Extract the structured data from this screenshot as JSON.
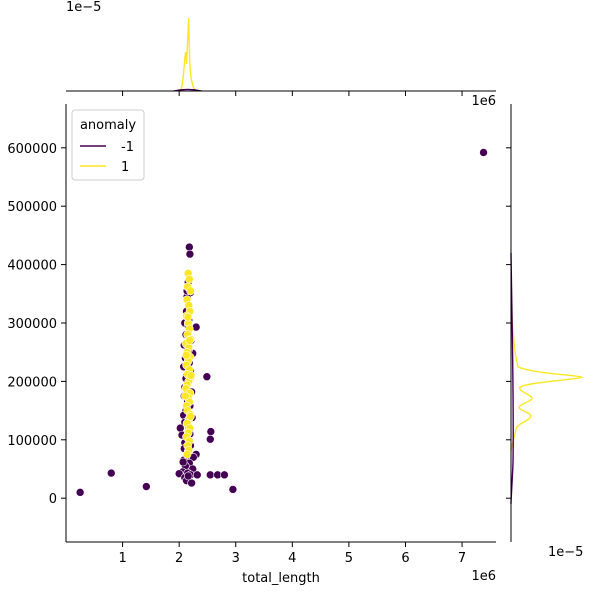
{
  "chart_data": {
    "type": "scatter",
    "xlabel": "total_length",
    "ylabel": "",
    "x_offset_label": "1e6",
    "y_offset_label": "",
    "xlim": [
      0,
      7600000
    ],
    "ylim": [
      -75000,
      675000
    ],
    "x_ticks": [
      {
        "value": 1000000,
        "label": "1"
      },
      {
        "value": 2000000,
        "label": "2"
      },
      {
        "value": 3000000,
        "label": "3"
      },
      {
        "value": 4000000,
        "label": "4"
      },
      {
        "value": 5000000,
        "label": "5"
      },
      {
        "value": 6000000,
        "label": "6"
      },
      {
        "value": 7000000,
        "label": "7"
      }
    ],
    "y_ticks": [
      {
        "value": 0,
        "label": "0"
      },
      {
        "value": 100000,
        "label": "100000"
      },
      {
        "value": 200000,
        "label": "200000"
      },
      {
        "value": 300000,
        "label": "300000"
      },
      {
        "value": 400000,
        "label": "400000"
      },
      {
        "value": 500000,
        "label": "500000"
      },
      {
        "value": 600000,
        "label": "600000"
      }
    ],
    "legend": {
      "title": "anomaly",
      "placement": "top-left",
      "entries": [
        {
          "label": "-1",
          "color": "#440154"
        },
        {
          "label": "1",
          "color": "#fde725"
        }
      ]
    },
    "series": [
      {
        "name": "-1",
        "color": "#440154",
        "points": [
          [
            250000,
            10000
          ],
          [
            800000,
            43000
          ],
          [
            1420000,
            20000
          ],
          [
            2950000,
            15000
          ],
          [
            7380000,
            592000
          ],
          [
            2180000,
            430000
          ],
          [
            2190000,
            418000
          ],
          [
            2160000,
            370000
          ],
          [
            2200000,
            352000
          ],
          [
            2140000,
            345000
          ],
          [
            2130000,
            320000
          ],
          [
            2170000,
            305000
          ],
          [
            2100000,
            300000
          ],
          [
            2300000,
            293000
          ],
          [
            2160000,
            295000
          ],
          [
            2120000,
            280000
          ],
          [
            2210000,
            270000
          ],
          [
            2090000,
            262000
          ],
          [
            2150000,
            255000
          ],
          [
            2240000,
            248000
          ],
          [
            2110000,
            240000
          ],
          [
            2180000,
            232000
          ],
          [
            2080000,
            225000
          ],
          [
            2200000,
            218000
          ],
          [
            2490000,
            208000
          ],
          [
            2130000,
            210000
          ],
          [
            2160000,
            198000
          ],
          [
            2100000,
            190000
          ],
          [
            2220000,
            182000
          ],
          [
            2090000,
            175000
          ],
          [
            2150000,
            165000
          ],
          [
            2190000,
            158000
          ],
          [
            2120000,
            150000
          ],
          [
            2080000,
            142000
          ],
          [
            2230000,
            138000
          ],
          [
            2100000,
            130000
          ],
          [
            2170000,
            122000
          ],
          [
            2020000,
            120000
          ],
          [
            2560000,
            114000
          ],
          [
            2550000,
            101000
          ],
          [
            2050000,
            108000
          ],
          [
            2140000,
            100000
          ],
          [
            2100000,
            95000
          ],
          [
            2200000,
            90000
          ],
          [
            2090000,
            85000
          ],
          [
            2160000,
            80000
          ],
          [
            2300000,
            75000
          ],
          [
            2130000,
            72000
          ],
          [
            2250000,
            70000
          ],
          [
            2080000,
            65000
          ],
          [
            2180000,
            60000
          ],
          [
            2110000,
            55000
          ],
          [
            2240000,
            50000
          ],
          [
            2060000,
            45000
          ],
          [
            2150000,
            43000
          ],
          [
            2000000,
            42000
          ],
          [
            2200000,
            40000
          ],
          [
            2320000,
            40000
          ],
          [
            2550000,
            40000
          ],
          [
            2680000,
            40000
          ],
          [
            2800000,
            40000
          ],
          [
            2100000,
            35000
          ],
          [
            2130000,
            30000
          ],
          [
            2220000,
            26000
          ],
          [
            2160000,
            38000
          ],
          [
            2070000,
            62000
          ],
          [
            2190000,
            110000
          ],
          [
            2120000,
            205000
          ],
          [
            2170000,
            255000
          ],
          [
            2140000,
            355000
          ]
        ]
      },
      {
        "name": "1",
        "color": "#fde725",
        "points": [
          [
            2160000,
            385000
          ],
          [
            2180000,
            375000
          ],
          [
            2150000,
            362000
          ],
          [
            2200000,
            355000
          ],
          [
            2140000,
            340000
          ],
          [
            2170000,
            330000
          ],
          [
            2190000,
            320000
          ],
          [
            2130000,
            312000
          ],
          [
            2160000,
            300000
          ],
          [
            2180000,
            290000
          ],
          [
            2150000,
            280000
          ],
          [
            2200000,
            272000
          ],
          [
            2120000,
            265000
          ],
          [
            2170000,
            258000
          ],
          [
            2140000,
            250000
          ],
          [
            2190000,
            242000
          ],
          [
            2160000,
            235000
          ],
          [
            2130000,
            228000
          ],
          [
            2180000,
            220000
          ],
          [
            2150000,
            212000
          ],
          [
            2200000,
            205000
          ],
          [
            2170000,
            200000
          ],
          [
            2140000,
            194000
          ],
          [
            2120000,
            188000
          ],
          [
            2190000,
            180000
          ],
          [
            2160000,
            172000
          ],
          [
            2180000,
            165000
          ],
          [
            2130000,
            158000
          ],
          [
            2150000,
            150000
          ],
          [
            2200000,
            143000
          ],
          [
            2170000,
            135000
          ],
          [
            2140000,
            128000
          ],
          [
            2190000,
            120000
          ],
          [
            2160000,
            112000
          ],
          [
            2130000,
            105000
          ],
          [
            2180000,
            98000
          ],
          [
            2150000,
            90000
          ],
          [
            2170000,
            82000
          ],
          [
            2140000,
            75000
          ],
          [
            2200000,
            140000
          ],
          [
            2110000,
            175000
          ],
          [
            2210000,
            210000
          ],
          [
            2125000,
            245000
          ],
          [
            2185000,
            270000
          ],
          [
            2155000,
            310000
          ]
        ]
      }
    ],
    "top_marginal": {
      "scale_label": "1e−5",
      "series": [
        {
          "name": "1",
          "color": "#fde725",
          "peak_x": 2150000
        },
        {
          "name": "-1",
          "color": "#440154",
          "peak_x": 2150000
        }
      ]
    },
    "right_marginal": {
      "scale_label": "1e−5",
      "series": [
        {
          "name": "1",
          "color": "#fde725",
          "peak_y": 208000
        },
        {
          "name": "-1",
          "color": "#440154",
          "peak_y": 150000
        }
      ]
    }
  }
}
